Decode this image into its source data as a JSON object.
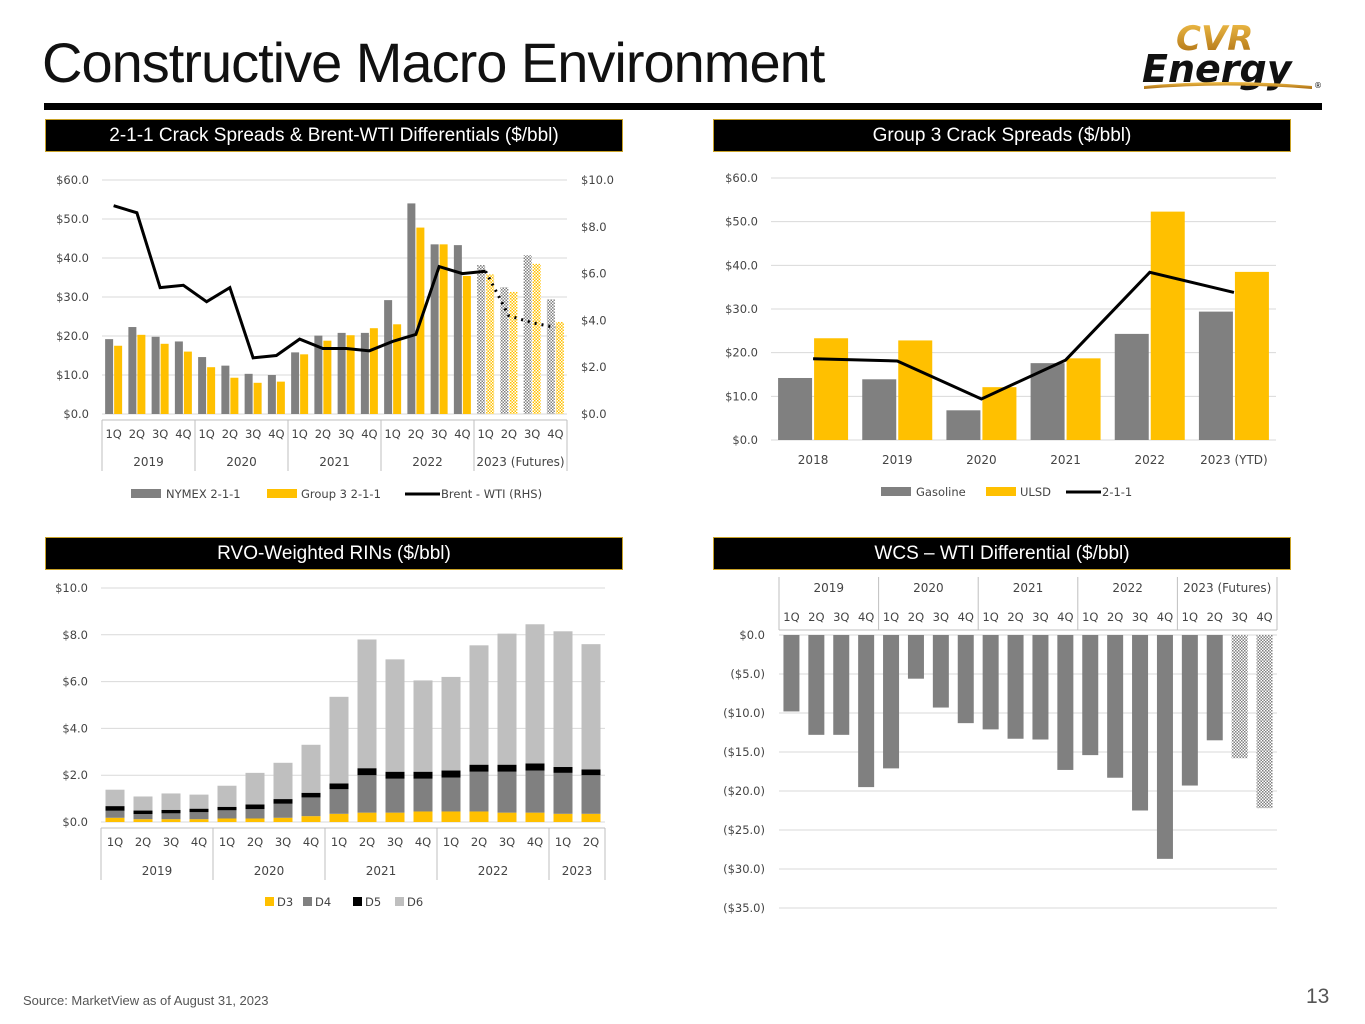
{
  "page": {
    "title": "Constructive Macro Environment",
    "source": "Source:  MarketView as of August 31, 2023",
    "page_number": "13",
    "logo_top": "CVR",
    "logo_bottom": "Energy",
    "logo_mark": "®"
  },
  "colors": {
    "gray": "#808080",
    "yellow": "#FFC000",
    "black": "#000000",
    "lightgray": "#BFBFBF",
    "grid": "#D9D9D9"
  },
  "chart_data": [
    {
      "id": "crack",
      "type": "bar",
      "title": "2-1-1 Crack Spreads & Brent-WTI Differentials ($/bbl)",
      "quarters": [
        "1Q",
        "2Q",
        "3Q",
        "4Q",
        "1Q",
        "2Q",
        "3Q",
        "4Q",
        "1Q",
        "2Q",
        "3Q",
        "4Q",
        "1Q",
        "2Q",
        "3Q",
        "4Q",
        "1Q",
        "2Q",
        "3Q",
        "4Q"
      ],
      "years": [
        "2019",
        "2020",
        "2021",
        "2022",
        "2023 (Futures)"
      ],
      "y_ticks": [
        "$0.0",
        "$10.0",
        "$20.0",
        "$30.0",
        "$40.0",
        "$50.0",
        "$60.0"
      ],
      "y2_ticks": [
        "$0.0",
        "$2.0",
        "$4.0",
        "$6.0",
        "$8.0",
        "$10.0"
      ],
      "ylim": [
        0,
        60
      ],
      "y2lim": [
        0,
        10
      ],
      "futures_from_index": 16,
      "series": [
        {
          "name": "NYMEX 2-1-1",
          "values": [
            19.2,
            22.3,
            19.8,
            18.6,
            14.6,
            12.4,
            10.3,
            10.0,
            15.8,
            20.1,
            20.8,
            20.8,
            29.2,
            54.0,
            43.5,
            43.3,
            38.2,
            32.5,
            40.7,
            29.4
          ]
        },
        {
          "name": "Group 3 2-1-1",
          "values": [
            17.5,
            20.3,
            18.0,
            16.0,
            12.0,
            9.3,
            8.0,
            8.3,
            15.3,
            18.8,
            20.2,
            22.0,
            23.0,
            47.8,
            43.5,
            35.4,
            35.8,
            31.3,
            38.5,
            23.6
          ]
        },
        {
          "name": "Brent - WTI (RHS)",
          "values": [
            8.9,
            8.6,
            5.4,
            5.5,
            4.8,
            5.4,
            2.4,
            2.5,
            3.2,
            2.8,
            2.8,
            2.7,
            3.1,
            3.4,
            6.3,
            6.0,
            6.1,
            4.2,
            3.9,
            3.7
          ]
        }
      ]
    },
    {
      "id": "group3",
      "type": "bar",
      "title": "Group 3 Crack Spreads ($/bbl)",
      "categories": [
        "2018",
        "2019",
        "2020",
        "2021",
        "2022",
        "2023 (YTD)"
      ],
      "y_ticks": [
        "$0.0",
        "$10.0",
        "$20.0",
        "$30.0",
        "$40.0",
        "$50.0",
        "$60.0"
      ],
      "ylim": [
        0,
        60
      ],
      "series": [
        {
          "name": "Gasoline",
          "values": [
            14.2,
            13.9,
            6.8,
            17.6,
            24.3,
            29.4
          ]
        },
        {
          "name": "ULSD",
          "values": [
            23.3,
            22.8,
            12.1,
            18.7,
            52.3,
            38.5
          ]
        },
        {
          "name": "2-1-1",
          "values": [
            18.6,
            18.1,
            9.4,
            18.3,
            38.4,
            33.8
          ]
        }
      ]
    },
    {
      "id": "rins",
      "type": "bar",
      "title": "RVO-Weighted RINs ($/bbl)",
      "quarters": [
        "1Q",
        "2Q",
        "3Q",
        "4Q",
        "1Q",
        "2Q",
        "3Q",
        "4Q",
        "1Q",
        "2Q",
        "3Q",
        "4Q",
        "1Q",
        "2Q",
        "3Q",
        "4Q",
        "1Q",
        "2Q"
      ],
      "years": [
        "2019",
        "2020",
        "2021",
        "2022",
        "2023"
      ],
      "y_ticks": [
        "$0.0",
        "$2.0",
        "$4.0",
        "$6.0",
        "$8.0",
        "$10.0"
      ],
      "ylim": [
        0,
        10
      ],
      "series": [
        {
          "name": "D3",
          "values": [
            0.18,
            0.12,
            0.12,
            0.12,
            0.15,
            0.15,
            0.18,
            0.25,
            0.35,
            0.4,
            0.4,
            0.45,
            0.45,
            0.45,
            0.4,
            0.4,
            0.35,
            0.35
          ]
        },
        {
          "name": "D4",
          "values": [
            0.3,
            0.22,
            0.25,
            0.3,
            0.35,
            0.4,
            0.6,
            0.8,
            1.05,
            1.6,
            1.45,
            1.4,
            1.45,
            1.7,
            1.75,
            1.8,
            1.75,
            1.65
          ]
        },
        {
          "name": "D5",
          "values": [
            0.2,
            0.15,
            0.15,
            0.15,
            0.15,
            0.2,
            0.2,
            0.2,
            0.25,
            0.3,
            0.3,
            0.3,
            0.3,
            0.3,
            0.3,
            0.3,
            0.25,
            0.25
          ]
        },
        {
          "name": "D6",
          "values": [
            0.7,
            0.6,
            0.7,
            0.6,
            0.9,
            1.35,
            1.55,
            2.05,
            3.7,
            5.5,
            4.8,
            3.9,
            4.0,
            5.1,
            5.6,
            5.95,
            5.8,
            5.35
          ]
        }
      ]
    },
    {
      "id": "wcs",
      "type": "bar",
      "title": "WCS – WTI Differential ($/bbl)",
      "quarters": [
        "1Q",
        "2Q",
        "3Q",
        "4Q",
        "1Q",
        "2Q",
        "3Q",
        "4Q",
        "1Q",
        "2Q",
        "3Q",
        "4Q",
        "1Q",
        "2Q",
        "3Q",
        "4Q",
        "1Q",
        "2Q",
        "3Q",
        "4Q"
      ],
      "years": [
        "2019",
        "2020",
        "2021",
        "2022",
        "2023 (Futures)"
      ],
      "y_ticks": [
        "$0.0",
        "($5.0)",
        "($10.0)",
        "($15.0)",
        "($20.0)",
        "($25.0)",
        "($30.0)",
        "($35.0)"
      ],
      "ylim": [
        -35,
        0
      ],
      "futures_from_index": 18,
      "values": [
        -9.8,
        -12.8,
        -12.8,
        -19.5,
        -17.1,
        -5.6,
        -9.3,
        -11.3,
        -12.1,
        -13.3,
        -13.4,
        -17.3,
        -15.4,
        -18.3,
        -22.5,
        -28.7,
        -19.3,
        -13.5,
        -15.8,
        -22.2
      ]
    }
  ]
}
